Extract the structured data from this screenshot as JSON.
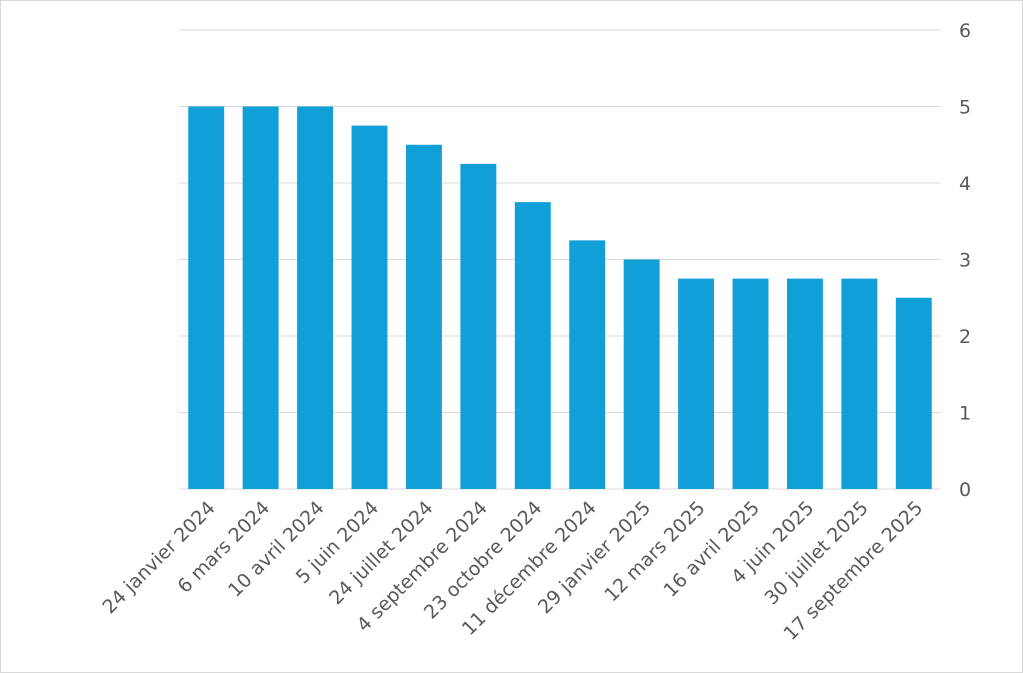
{
  "chart_data": {
    "type": "bar",
    "title": "",
    "xlabel": "",
    "ylabel": "",
    "categories": [
      "24 janvier 2024",
      "6 mars 2024",
      "10 avril 2024",
      "5 juin 2024",
      "24 juillet 2024",
      "4 septembre 2024",
      "23 octobre 2024",
      "11 décembre 2024",
      "29 janvier 2025",
      "12 mars 2025",
      "16 avril 2025",
      "4 juin 2025",
      "30 juillet 2025",
      "17 septembre 2025"
    ],
    "values": [
      5,
      5,
      5,
      4.75,
      4.5,
      4.25,
      3.75,
      3.25,
      3,
      2.75,
      2.75,
      2.75,
      2.75,
      2.5
    ],
    "ylim": [
      0,
      6
    ],
    "yticks": [
      0,
      1,
      2,
      3,
      4,
      5,
      6
    ],
    "y_axis_side": "right",
    "grid": true,
    "legend": "none",
    "colors": {
      "bar": "#119fd8",
      "grid": "#d9d9d9",
      "text": "#595959"
    }
  }
}
